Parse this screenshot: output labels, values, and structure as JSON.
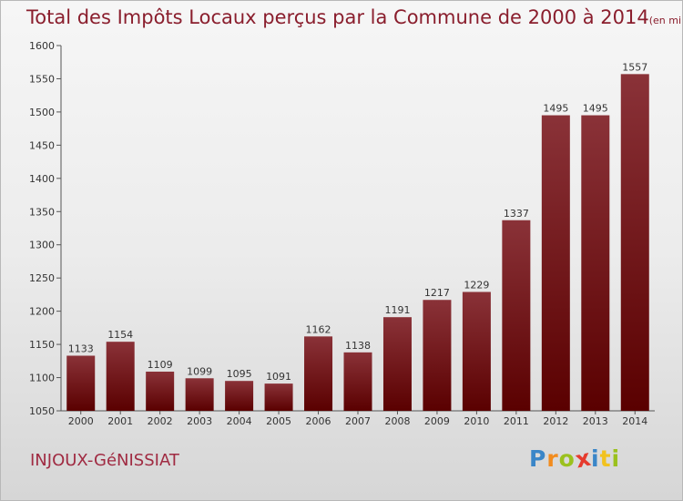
{
  "chart_data": {
    "type": "bar",
    "title": "Total des Impôts Locaux perçus par la Commune de 2000 à 2014",
    "unit_note": "(en milliers d'€)",
    "categories": [
      "2000",
      "2001",
      "2002",
      "2003",
      "2004",
      "2005",
      "2006",
      "2007",
      "2008",
      "2009",
      "2010",
      "2011",
      "2012",
      "2013",
      "2014"
    ],
    "values": [
      1133,
      1154,
      1109,
      1099,
      1095,
      1091,
      1162,
      1138,
      1191,
      1217,
      1229,
      1337,
      1495,
      1495,
      1557
    ],
    "ylim": [
      1050,
      1600
    ],
    "yticks": [
      1050,
      1100,
      1150,
      1200,
      1250,
      1300,
      1350,
      1400,
      1450,
      1500,
      1550,
      1600
    ],
    "xlabel": "",
    "ylabel": "",
    "grid": false,
    "bar_color_top": "#8a3238",
    "bar_color_bottom": "#5a0000"
  },
  "commune": {
    "name": "INJOUX-GéNISSIAT"
  },
  "logo": {
    "letters": [
      "P",
      "r",
      "o",
      "x",
      "i",
      "t",
      "i"
    ],
    "colors": [
      "#3a86c8",
      "#f28c1e",
      "#9bc11e",
      "#e63b2e",
      "#3a86c8",
      "#f2c21e",
      "#9bc11e"
    ]
  }
}
